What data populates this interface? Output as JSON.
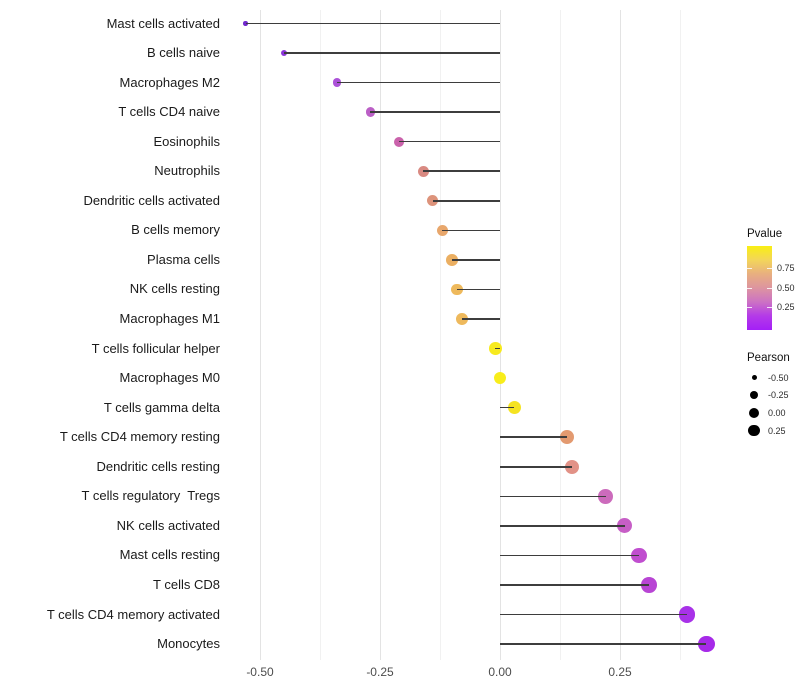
{
  "chart_data": {
    "type": "lollipop",
    "orientation": "horizontal",
    "title": "",
    "xlabel": "",
    "ylabel": "",
    "grid": true,
    "xlim": [
      -0.57,
      0.47
    ],
    "x_ticks": [
      {
        "value": -0.5,
        "label": "-0.50"
      },
      {
        "value": -0.25,
        "label": "-0.25"
      },
      {
        "value": 0.0,
        "label": "0.00"
      },
      {
        "value": 0.25,
        "label": "0.25"
      }
    ],
    "x_minor_ticks": [
      -0.375,
      -0.125,
      0.125,
      0.375
    ],
    "stem_color": "#3d3d3d",
    "points": [
      {
        "label": "Mast cells activated",
        "pearson": -0.53,
        "color": "#7129cd"
      },
      {
        "label": "B cells naive",
        "pearson": -0.45,
        "color": "#8b35d9"
      },
      {
        "label": "Macrophages M2",
        "pearson": -0.34,
        "color": "#ac52d8"
      },
      {
        "label": "T cells CD4 naive",
        "pearson": -0.27,
        "color": "#bb5fc6"
      },
      {
        "label": "Eosinophils",
        "pearson": -0.21,
        "color": "#ca62ab"
      },
      {
        "label": "Neutrophils",
        "pearson": -0.16,
        "color": "#d98a82"
      },
      {
        "label": "Dendritic cells activated",
        "pearson": -0.14,
        "color": "#dd937b"
      },
      {
        "label": "B cells memory",
        "pearson": -0.12,
        "color": "#e8a76c"
      },
      {
        "label": "Plasma cells",
        "pearson": -0.1,
        "color": "#ebaf62"
      },
      {
        "label": "NK cells resting",
        "pearson": -0.09,
        "color": "#eeb95c"
      },
      {
        "label": "Macrophages M1",
        "pearson": -0.08,
        "color": "#eeb95c"
      },
      {
        "label": "T cells follicular helper",
        "pearson": -0.01,
        "color": "#f7ea1e"
      },
      {
        "label": "Macrophages M0",
        "pearson": 0.0,
        "color": "#f8ed1b"
      },
      {
        "label": "T cells gamma delta",
        "pearson": 0.03,
        "color": "#f5e321"
      },
      {
        "label": "T cells CD4 memory resting",
        "pearson": 0.14,
        "color": "#e39a70"
      },
      {
        "label": "Dendritic cells resting",
        "pearson": 0.15,
        "color": "#e29287"
      },
      {
        "label": "T cells regulatory  Tregs",
        "pearson": 0.22,
        "color": "#cc6bbc"
      },
      {
        "label": "NK cells activated",
        "pearson": 0.26,
        "color": "#c75ec6"
      },
      {
        "label": "Mast cells resting",
        "pearson": 0.29,
        "color": "#c04ecf"
      },
      {
        "label": "T cells CD8",
        "pearson": 0.31,
        "color": "#b845d4"
      },
      {
        "label": "T cells CD4 memory activated",
        "pearson": 0.39,
        "color": "#a832e8"
      },
      {
        "label": "Monocytes",
        "pearson": 0.43,
        "color": "#a62ae8"
      }
    ],
    "legend": {
      "pvalue": {
        "title": "Pvalue",
        "gradient_top_to_bottom": [
          "#f9ef12",
          "#f3d55a",
          "#e8af80",
          "#dd94a0",
          "#cc72c4",
          "#b43ae8",
          "#a41ff7"
        ],
        "ticks": [
          {
            "label": "0.75",
            "pct": 26.2
          },
          {
            "label": "0.50",
            "pct": 49.6
          },
          {
            "label": "0.25",
            "pct": 72.3
          }
        ]
      },
      "pearson": {
        "title": "Pearson",
        "items": [
          {
            "label": "-0.50",
            "dia": 5
          },
          {
            "label": "-0.25",
            "dia": 8
          },
          {
            "label": "0.00",
            "dia": 10
          },
          {
            "label": "0.25",
            "dia": 11.5
          }
        ]
      }
    }
  }
}
